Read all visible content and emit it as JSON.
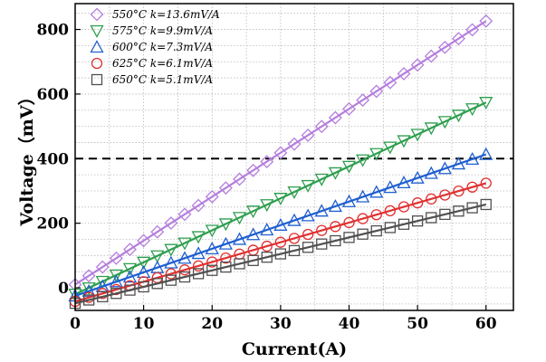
{
  "chart_data": {
    "type": "scatter",
    "xlabel": "Current(A)",
    "ylabel": "Voltage（mV）",
    "xlim": [
      0,
      64
    ],
    "ylim": [
      -70,
      880
    ],
    "xticks": [
      0,
      10,
      20,
      30,
      40,
      50,
      60
    ],
    "yticks": [
      0,
      200,
      400,
      600,
      800
    ],
    "grid": true,
    "legend_position": "top-left",
    "reference_line": {
      "y": 400,
      "style": "dashed",
      "color": "#000000"
    },
    "series": [
      {
        "name": "550°C k=13.6mV/A",
        "marker": "diamond",
        "color": "#b57edc",
        "slope": 13.6,
        "intercept": 10,
        "x_range": [
          0,
          60
        ],
        "point_step": 2
      },
      {
        "name": "575°C k=9.9mV/A",
        "marker": "triangle-down",
        "color": "#2e9e4e",
        "slope": 9.9,
        "intercept": -20,
        "x_range": [
          0,
          60
        ],
        "point_step": 2
      },
      {
        "name": "600°C k=7.3mV/A",
        "marker": "triangle-up",
        "color": "#1f5fd0",
        "slope": 7.3,
        "intercept": -25,
        "x_range": [
          0,
          60
        ],
        "point_step": 2
      },
      {
        "name": "625°C k=6.1mV/A",
        "marker": "circle",
        "color": "#e03030",
        "slope": 6.1,
        "intercept": -42,
        "x_range": [
          0,
          60
        ],
        "point_step": 2
      },
      {
        "name": "650°C k=5.1mV/A",
        "marker": "square",
        "color": "#505050",
        "slope": 5.1,
        "intercept": -48,
        "x_range": [
          0,
          60
        ],
        "point_step": 2
      }
    ]
  }
}
